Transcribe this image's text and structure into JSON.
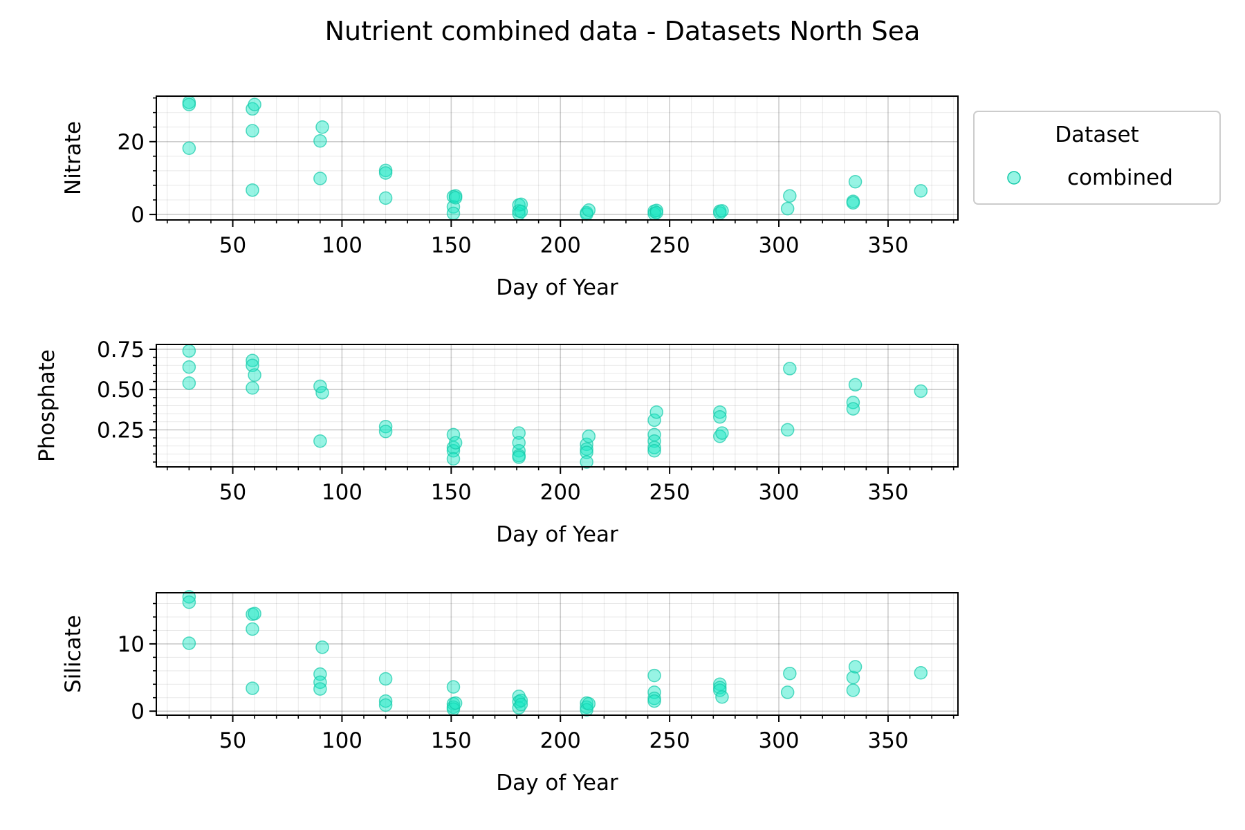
{
  "figure_title": "Nutrient combined data - Datasets North Sea",
  "legend": {
    "title": "Dataset",
    "entries": [
      {
        "label": "combined",
        "color": "#19e6c4"
      }
    ]
  },
  "colors": {
    "marker": "#19e6c4",
    "marker_edge": "#13c9a8"
  },
  "chart_data": [
    {
      "type": "scatter",
      "title": "",
      "xlabel": "Day of Year",
      "ylabel": "Nitrate",
      "series": [
        {
          "name": "combined"
        }
      ],
      "xlim": [
        15,
        382
      ],
      "ylim": [
        -1.5,
        32.5
      ],
      "xticks": [
        50,
        100,
        150,
        200,
        250,
        300,
        350
      ],
      "yticks": [
        0,
        20
      ],
      "xticklabels": [
        "50",
        "100",
        "150",
        "200",
        "250",
        "300",
        "350"
      ],
      "yticklabels": [
        "0",
        "20"
      ],
      "x": [
        30,
        30,
        30,
        59,
        59,
        59,
        60,
        90,
        90,
        91,
        120,
        120,
        120,
        151,
        151,
        151,
        152,
        152,
        181,
        181,
        181,
        182,
        182,
        212,
        212,
        213,
        243,
        243,
        244,
        244,
        273,
        273,
        274,
        304,
        305,
        334,
        334,
        335,
        365
      ],
      "y": [
        30.8,
        30.2,
        18.2,
        29.0,
        23.0,
        6.7,
        30.2,
        20.2,
        9.9,
        24.0,
        12.1,
        11.4,
        4.5,
        4.9,
        2.1,
        0.3,
        5.1,
        4.6,
        2.6,
        1.0,
        0.2,
        2.8,
        0.8,
        0.5,
        0.1,
        1.2,
        0.9,
        0.2,
        1.1,
        0.5,
        0.9,
        0.4,
        1.0,
        1.6,
        5.1,
        3.6,
        3.2,
        9.0,
        6.5
      ]
    },
    {
      "type": "scatter",
      "title": "",
      "xlabel": "Day of Year",
      "ylabel": "Phosphate",
      "series": [
        {
          "name": "combined"
        }
      ],
      "xlim": [
        15,
        382
      ],
      "ylim": [
        0.02,
        0.78
      ],
      "xticks": [
        50,
        100,
        150,
        200,
        250,
        300,
        350
      ],
      "yticks": [
        0.25,
        0.5,
        0.75
      ],
      "xticklabels": [
        "50",
        "100",
        "150",
        "200",
        "250",
        "300",
        "350"
      ],
      "yticklabels": [
        "0.25",
        "0.50",
        "0.75"
      ],
      "x": [
        30,
        30,
        30,
        59,
        59,
        59,
        60,
        90,
        90,
        91,
        120,
        120,
        151,
        151,
        151,
        151,
        152,
        181,
        181,
        181,
        181,
        181,
        212,
        212,
        212,
        212,
        213,
        243,
        243,
        243,
        243,
        243,
        244,
        273,
        273,
        273,
        274,
        304,
        305,
        334,
        334,
        335,
        365
      ],
      "y": [
        0.74,
        0.64,
        0.54,
        0.68,
        0.65,
        0.51,
        0.59,
        0.52,
        0.18,
        0.48,
        0.27,
        0.24,
        0.22,
        0.14,
        0.12,
        0.07,
        0.17,
        0.23,
        0.17,
        0.12,
        0.09,
        0.08,
        0.16,
        0.13,
        0.11,
        0.05,
        0.21,
        0.31,
        0.22,
        0.18,
        0.14,
        0.12,
        0.36,
        0.36,
        0.33,
        0.21,
        0.23,
        0.25,
        0.63,
        0.42,
        0.38,
        0.53,
        0.49
      ]
    },
    {
      "type": "scatter",
      "title": "",
      "xlabel": "Day of Year",
      "ylabel": "Silicate",
      "series": [
        {
          "name": "combined"
        }
      ],
      "xlim": [
        15,
        382
      ],
      "ylim": [
        -0.6,
        17.6
      ],
      "xticks": [
        50,
        100,
        150,
        200,
        250,
        300,
        350
      ],
      "yticks": [
        0,
        10
      ],
      "xticklabels": [
        "50",
        "100",
        "150",
        "200",
        "250",
        "300",
        "350"
      ],
      "yticklabels": [
        "0",
        "10"
      ],
      "x": [
        30,
        30,
        30,
        59,
        59,
        59,
        60,
        90,
        90,
        90,
        91,
        120,
        120,
        120,
        151,
        151,
        151,
        151,
        152,
        181,
        181,
        181,
        182,
        182,
        212,
        212,
        212,
        213,
        243,
        243,
        243,
        243,
        273,
        273,
        273,
        274,
        304,
        305,
        334,
        334,
        335,
        365
      ],
      "y": [
        17.0,
        16.2,
        10.1,
        14.4,
        12.2,
        3.4,
        14.5,
        5.5,
        4.3,
        3.3,
        9.5,
        4.8,
        1.5,
        0.9,
        3.6,
        1.1,
        0.6,
        0.3,
        1.2,
        2.2,
        1.4,
        0.5,
        1.6,
        1.0,
        1.2,
        0.6,
        0.2,
        1.1,
        5.3,
        2.8,
        1.9,
        1.5,
        4.0,
        3.5,
        3.1,
        2.1,
        2.8,
        5.6,
        5.0,
        3.1,
        6.6,
        5.7
      ]
    }
  ]
}
